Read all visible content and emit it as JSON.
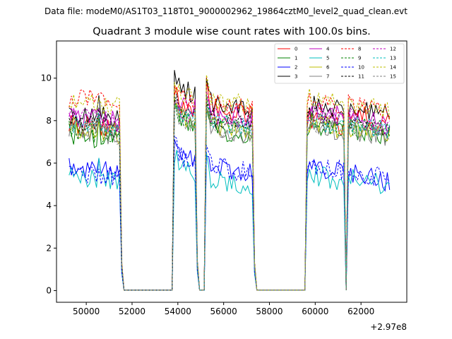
{
  "chart_data": {
    "type": "line",
    "suptitle": "Data file: modeM0/AS1T03_118T01_9000002962_19864cztM0_level2_quad_clean.evt",
    "title": "Quadrant 3 module wise count rates with 100.0s bins.",
    "xlabel": "",
    "ylabel": "",
    "x_offset_label": "+2.97e8",
    "xlim": [
      48700,
      64000
    ],
    "ylim": [
      -0.55,
      11.75
    ],
    "x_ticks": [
      50000,
      52000,
      54000,
      56000,
      58000,
      60000,
      62000
    ],
    "x_tick_labels": [
      "50000",
      "52000",
      "54000",
      "56000",
      "58000",
      "60000",
      "62000"
    ],
    "y_ticks": [
      0,
      2,
      4,
      6,
      8,
      10
    ],
    "y_tick_labels": [
      "0",
      "2",
      "4",
      "6",
      "8",
      "10"
    ],
    "legend_position": "top-right",
    "segments": [
      {
        "start": 49250,
        "end": 51500
      },
      {
        "start": 53850,
        "end": 54800
      },
      {
        "start": 55250,
        "end": 57300
      },
      {
        "start": 59650,
        "end": 61250
      },
      {
        "start": 61450,
        "end": 63250
      }
    ],
    "series": [
      {
        "name": "0",
        "color": "#ff0000",
        "dashed": false,
        "levels": [
          7.9,
          8.9,
          8.6,
          8.1,
          8.3
        ]
      },
      {
        "name": "1",
        "color": "#008000",
        "dashed": false,
        "levels": [
          7.4,
          8.2,
          7.6,
          7.7,
          7.6
        ]
      },
      {
        "name": "2",
        "color": "#0000ff",
        "dashed": false,
        "levels": [
          5.9,
          6.5,
          5.8,
          5.9,
          5.5
        ]
      },
      {
        "name": "3",
        "color": "#000000",
        "dashed": false,
        "levels": [
          8.4,
          9.6,
          8.9,
          8.8,
          8.7
        ]
      },
      {
        "name": "4",
        "color": "#bf00bf",
        "dashed": false,
        "levels": [
          8.3,
          8.9,
          8.4,
          8.5,
          8.2
        ]
      },
      {
        "name": "5",
        "color": "#00bfbf",
        "dashed": false,
        "levels": [
          5.5,
          5.9,
          5.3,
          5.5,
          5.3
        ]
      },
      {
        "name": "6",
        "color": "#bfbf00",
        "dashed": false,
        "levels": [
          7.7,
          8.3,
          7.8,
          7.9,
          7.7
        ]
      },
      {
        "name": "7",
        "color": "#808080",
        "dashed": false,
        "levels": [
          7.6,
          8.2,
          7.7,
          7.8,
          7.6
        ]
      },
      {
        "name": "8",
        "color": "#ff0000",
        "dashed": true,
        "levels": [
          9.1,
          9.1,
          8.9,
          9.0,
          8.8
        ]
      },
      {
        "name": "9",
        "color": "#008000",
        "dashed": true,
        "levels": [
          7.6,
          8.4,
          7.9,
          8.0,
          7.8
        ]
      },
      {
        "name": "10",
        "color": "#0000ff",
        "dashed": true,
        "levels": [
          5.6,
          6.4,
          5.9,
          6.0,
          5.6
        ]
      },
      {
        "name": "11",
        "color": "#000000",
        "dashed": true,
        "levels": [
          8.0,
          8.7,
          8.2,
          8.3,
          8.0
        ]
      },
      {
        "name": "12",
        "color": "#bf00bf",
        "dashed": true,
        "levels": [
          8.2,
          8.6,
          8.3,
          8.3,
          8.1
        ]
      },
      {
        "name": "13",
        "color": "#00bfbf",
        "dashed": true,
        "levels": [
          7.8,
          8.4,
          8.0,
          8.1,
          7.8
        ]
      },
      {
        "name": "14",
        "color": "#bfbf00",
        "dashed": true,
        "levels": [
          9.0,
          9.3,
          9.0,
          9.1,
          8.9
        ]
      },
      {
        "name": "15",
        "color": "#808080",
        "dashed": true,
        "levels": [
          7.7,
          8.2,
          7.8,
          7.9,
          7.7
        ]
      }
    ]
  }
}
